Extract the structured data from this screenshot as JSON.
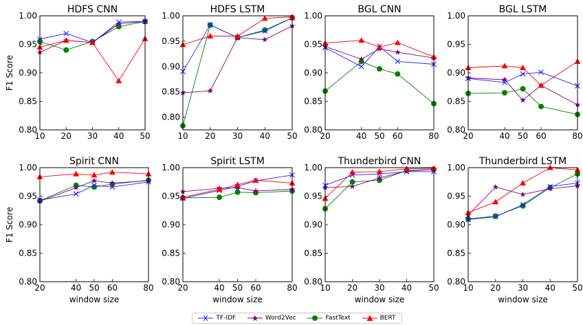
{
  "chart_data": [
    {
      "type": "line",
      "title": "HDFS CNN",
      "x": [
        10,
        20,
        30,
        40,
        50
      ],
      "xlim": [
        10,
        50
      ],
      "xticks": [
        "10",
        "20",
        "30",
        "40",
        "50"
      ],
      "ylim": [
        0.8,
        1.0
      ],
      "yticks": [
        "0.80",
        "0.85",
        "0.90",
        "0.95",
        "1.00"
      ],
      "ylabel": "F1 Score",
      "xlabel": "",
      "series": [
        {
          "name": "TF-IDF",
          "values": [
            0.959,
            0.969,
            0.953,
            0.989,
            0.99
          ]
        },
        {
          "name": "Word2Vec",
          "values": [
            0.936,
            0.957,
            0.953,
            0.986,
            0.99
          ]
        },
        {
          "name": "FastText",
          "values": [
            0.955,
            0.94,
            0.955,
            0.981,
            0.99
          ]
        },
        {
          "name": "BERT",
          "values": [
            0.945,
            0.957,
            0.953,
            0.886,
            0.96
          ]
        }
      ]
    },
    {
      "type": "line",
      "title": "HDFS LSTM",
      "x": [
        10,
        20,
        30,
        40,
        50
      ],
      "xlim": [
        10,
        50
      ],
      "xticks": [
        "10",
        "20",
        "30",
        "40",
        "50"
      ],
      "ylim": [
        0.775,
        1.0
      ],
      "yticks": [
        "0.80",
        "0.85",
        "0.90",
        "0.95",
        "1.00"
      ],
      "ylabel": "",
      "xlabel": "",
      "series": [
        {
          "name": "TF-IDF",
          "values": [
            0.89,
            0.982,
            0.957,
            0.97,
            0.996
          ]
        },
        {
          "name": "Word2Vec",
          "values": [
            0.848,
            0.852,
            0.957,
            0.953,
            0.98
          ]
        },
        {
          "name": "FastText",
          "values": [
            0.783,
            0.982,
            0.957,
            0.972,
            0.996
          ]
        },
        {
          "name": "BERT",
          "values": [
            0.943,
            0.96,
            0.96,
            0.995,
            0.998
          ]
        }
      ]
    },
    {
      "type": "line",
      "title": "BGL CNN",
      "x": [
        20,
        40,
        50,
        60,
        80
      ],
      "xlim": [
        20,
        80
      ],
      "xticks": [
        "20",
        "40",
        "50",
        "60",
        "80"
      ],
      "ylim": [
        0.8,
        1.0
      ],
      "yticks": [
        "0.80",
        "0.85",
        "0.90",
        "0.95",
        "1.00"
      ],
      "ylabel": "",
      "xlabel": "",
      "series": [
        {
          "name": "TF-IDF",
          "values": [
            0.944,
            0.911,
            0.946,
            0.92,
            0.915
          ]
        },
        {
          "name": "Word2Vec",
          "values": [
            0.946,
            0.924,
            0.942,
            0.936,
            0.926
          ]
        },
        {
          "name": "FastText",
          "values": [
            0.868,
            0.92,
            0.907,
            0.898,
            0.846
          ]
        },
        {
          "name": "BERT",
          "values": [
            0.952,
            0.957,
            0.945,
            0.953,
            0.928
          ]
        }
      ]
    },
    {
      "type": "line",
      "title": "BGL LSTM",
      "x": [
        20,
        40,
        50,
        60,
        80
      ],
      "xlim": [
        20,
        80
      ],
      "xticks": [
        "20",
        "40",
        "50",
        "60",
        "80"
      ],
      "ylim": [
        0.8,
        1.0
      ],
      "yticks": [
        "0.80",
        "0.85",
        "0.90",
        "0.95",
        "1.00"
      ],
      "ylabel": "",
      "xlabel": "",
      "series": [
        {
          "name": "TF-IDF",
          "values": [
            0.89,
            0.883,
            0.898,
            0.901,
            0.877
          ]
        },
        {
          "name": "Word2Vec",
          "values": [
            0.891,
            0.888,
            0.852,
            0.878,
            0.844
          ]
        },
        {
          "name": "FastText",
          "values": [
            0.864,
            0.865,
            0.872,
            0.841,
            0.827
          ]
        },
        {
          "name": "BERT",
          "values": [
            0.909,
            0.912,
            0.909,
            0.878,
            0.92
          ]
        }
      ]
    },
    {
      "type": "line",
      "title": "Spirit CNN",
      "x": [
        20,
        40,
        50,
        60,
        80
      ],
      "xlim": [
        20,
        80
      ],
      "xticks": [
        "20",
        "40",
        "50",
        "60",
        "80"
      ],
      "ylim": [
        0.8,
        1.0
      ],
      "yticks": [
        "0.80",
        "0.85",
        "0.90",
        "0.95",
        "1.00"
      ],
      "ylabel": "F1 Score",
      "xlabel": "window size",
      "series": [
        {
          "name": "TF-IDF",
          "values": [
            0.943,
            0.954,
            0.969,
            0.966,
            0.975
          ]
        },
        {
          "name": "Word2Vec",
          "values": [
            0.941,
            0.965,
            0.977,
            0.973,
            0.977
          ]
        },
        {
          "name": "FastText",
          "values": [
            0.942,
            0.969,
            0.966,
            0.971,
            0.978
          ]
        },
        {
          "name": "BERT",
          "values": [
            0.984,
            0.989,
            0.987,
            0.992,
            0.989
          ]
        }
      ]
    },
    {
      "type": "line",
      "title": "Spirit LSTM",
      "x": [
        20,
        40,
        50,
        60,
        80
      ],
      "xlim": [
        20,
        80
      ],
      "xticks": [
        "20",
        "40",
        "50",
        "60",
        "80"
      ],
      "ylim": [
        0.8,
        1.0
      ],
      "yticks": [
        "0.80",
        "0.85",
        "0.90",
        "0.95",
        "1.00"
      ],
      "ylabel": "",
      "xlabel": "window size",
      "series": [
        {
          "name": "TF-IDF",
          "values": [
            0.946,
            0.96,
            0.967,
            0.977,
            0.987
          ]
        },
        {
          "name": "Word2Vec",
          "values": [
            0.958,
            0.964,
            0.965,
            0.959,
            0.962
          ]
        },
        {
          "name": "FastText",
          "values": [
            0.947,
            0.948,
            0.957,
            0.956,
            0.959
          ]
        },
        {
          "name": "BERT",
          "values": [
            0.948,
            0.962,
            0.97,
            0.978,
            0.973
          ]
        }
      ]
    },
    {
      "type": "line",
      "title": "Thunderbird CNN",
      "x": [
        10,
        20,
        30,
        40,
        50
      ],
      "xlim": [
        10,
        50
      ],
      "xticks": [
        "10",
        "20",
        "30",
        "40",
        "50"
      ],
      "ylim": [
        0.8,
        1.0
      ],
      "yticks": [
        "0.80",
        "0.85",
        "0.90",
        "0.95",
        "1.00"
      ],
      "ylabel": "",
      "xlabel": "window size",
      "series": [
        {
          "name": "TF-IDF",
          "values": [
            0.969,
            0.987,
            0.989,
            0.993,
            0.993
          ]
        },
        {
          "name": "Word2Vec",
          "values": [
            0.965,
            0.967,
            0.982,
            0.994,
            0.997
          ]
        },
        {
          "name": "FastText",
          "values": [
            0.928,
            0.975,
            0.978,
            0.995,
            0.997
          ]
        },
        {
          "name": "BERT",
          "values": [
            0.946,
            0.992,
            0.993,
            0.998,
            0.999
          ]
        }
      ]
    },
    {
      "type": "line",
      "title": "Thunderbird LSTM",
      "x": [
        10,
        20,
        30,
        40,
        50
      ],
      "xlim": [
        10,
        50
      ],
      "xticks": [
        "10",
        "20",
        "30",
        "40",
        "50"
      ],
      "ylim": [
        0.8,
        1.0
      ],
      "yticks": [
        "0.80",
        "0.85",
        "0.90",
        "0.95",
        "1.00"
      ],
      "ylabel": "",
      "xlabel": "window size",
      "series": [
        {
          "name": "TF-IDF",
          "values": [
            0.909,
            0.914,
            0.935,
            0.967,
            0.973
          ]
        },
        {
          "name": "Word2Vec",
          "values": [
            0.917,
            0.966,
            0.953,
            0.963,
            0.968
          ]
        },
        {
          "name": "FastText",
          "values": [
            0.91,
            0.915,
            0.933,
            0.965,
            0.989
          ]
        },
        {
          "name": "BERT",
          "values": [
            0.921,
            0.94,
            0.973,
            1.0,
            0.996
          ]
        }
      ]
    }
  ],
  "legend": {
    "placement": "bottom-center",
    "items": [
      {
        "label": "TF-IDF",
        "color": "#1f1fff",
        "marker": "x"
      },
      {
        "label": "Word2Vec",
        "color": "#800080",
        "marker": "star"
      },
      {
        "label": "FastText",
        "color": "#008000",
        "marker": "circle"
      },
      {
        "label": "BERT",
        "color": "#ff0000",
        "marker": "triangle"
      }
    ]
  },
  "colors": {
    "TF-IDF": "#1f1fff",
    "Word2Vec": "#800080",
    "FastText": "#008000",
    "BERT": "#ff0000"
  }
}
